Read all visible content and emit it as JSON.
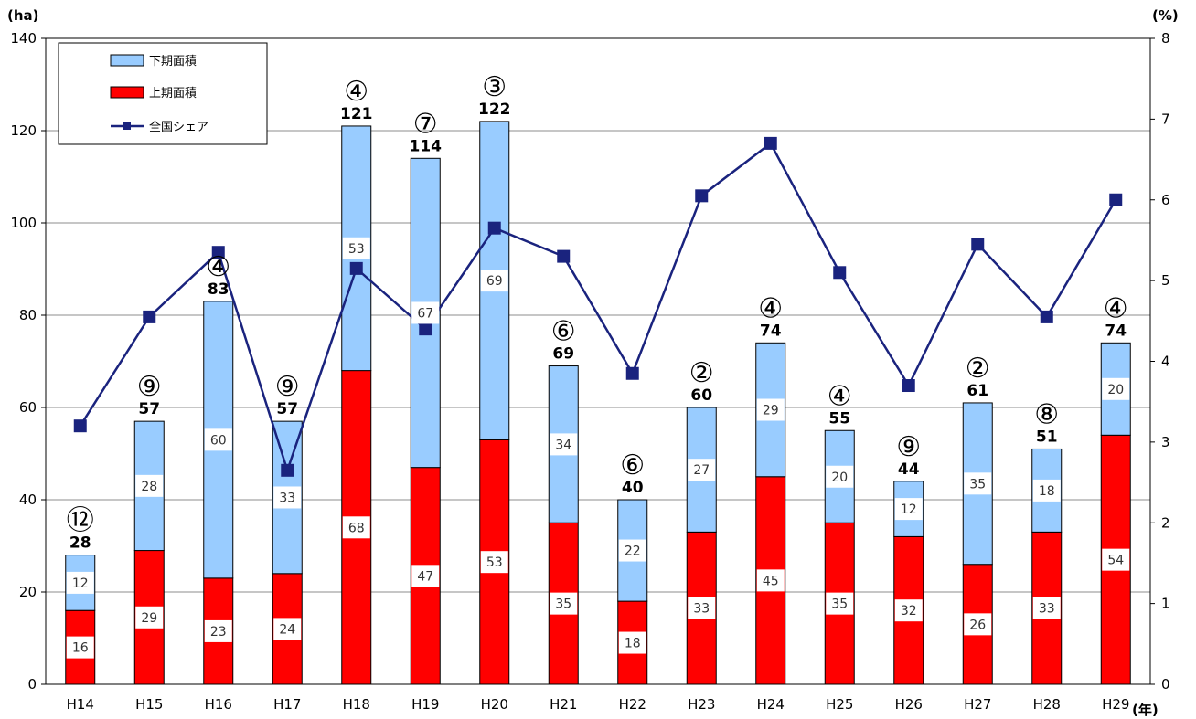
{
  "chart_data": {
    "type": "bar",
    "stacked": true,
    "categories": [
      "H14",
      "H15",
      "H16",
      "H17",
      "H18",
      "H19",
      "H20",
      "H21",
      "H22",
      "H23",
      "H24",
      "H25",
      "H26",
      "H27",
      "H28",
      "H29"
    ],
    "series": [
      {
        "name": "上期面積",
        "color": "#ff0000",
        "values": [
          16,
          29,
          23,
          24,
          68,
          47,
          53,
          35,
          18,
          33,
          45,
          35,
          32,
          26,
          33,
          54
        ]
      },
      {
        "name": "下期面積",
        "color": "#99ccff",
        "values": [
          12,
          28,
          60,
          33,
          53,
          67,
          69,
          34,
          22,
          27,
          29,
          20,
          12,
          35,
          18,
          20
        ]
      }
    ],
    "totals": [
      28,
      57,
      83,
      57,
      121,
      114,
      122,
      69,
      40,
      60,
      74,
      55,
      44,
      61,
      51,
      74
    ],
    "ranks": [
      "⑫",
      "⑨",
      "④",
      "⑨",
      "④",
      "⑦",
      "③",
      "⑥",
      "⑥",
      "②",
      "④",
      "④",
      "⑨",
      "②",
      "⑧",
      "④"
    ],
    "line_series": {
      "name": "全国シェア",
      "color": "#1a237e",
      "axis": "right",
      "values": [
        3.2,
        4.55,
        5.35,
        2.65,
        5.15,
        4.4,
        5.65,
        5.3,
        3.85,
        6.05,
        6.7,
        5.1,
        3.7,
        5.45,
        4.55,
        6.0
      ]
    },
    "ylabel_left": "(ha)",
    "ylabel_right": "(%)",
    "xlabel": "(年)",
    "ylim_left": [
      0,
      140
    ],
    "ylim_right": [
      0,
      8
    ],
    "yticks_left": [
      "0",
      "20",
      "40",
      "60",
      "80",
      "100",
      "120",
      "140"
    ],
    "yticks_right": [
      "0",
      "1",
      "2",
      "3",
      "4",
      "5",
      "6",
      "7",
      "8"
    ],
    "grid": true,
    "legend_position": "top-left"
  }
}
